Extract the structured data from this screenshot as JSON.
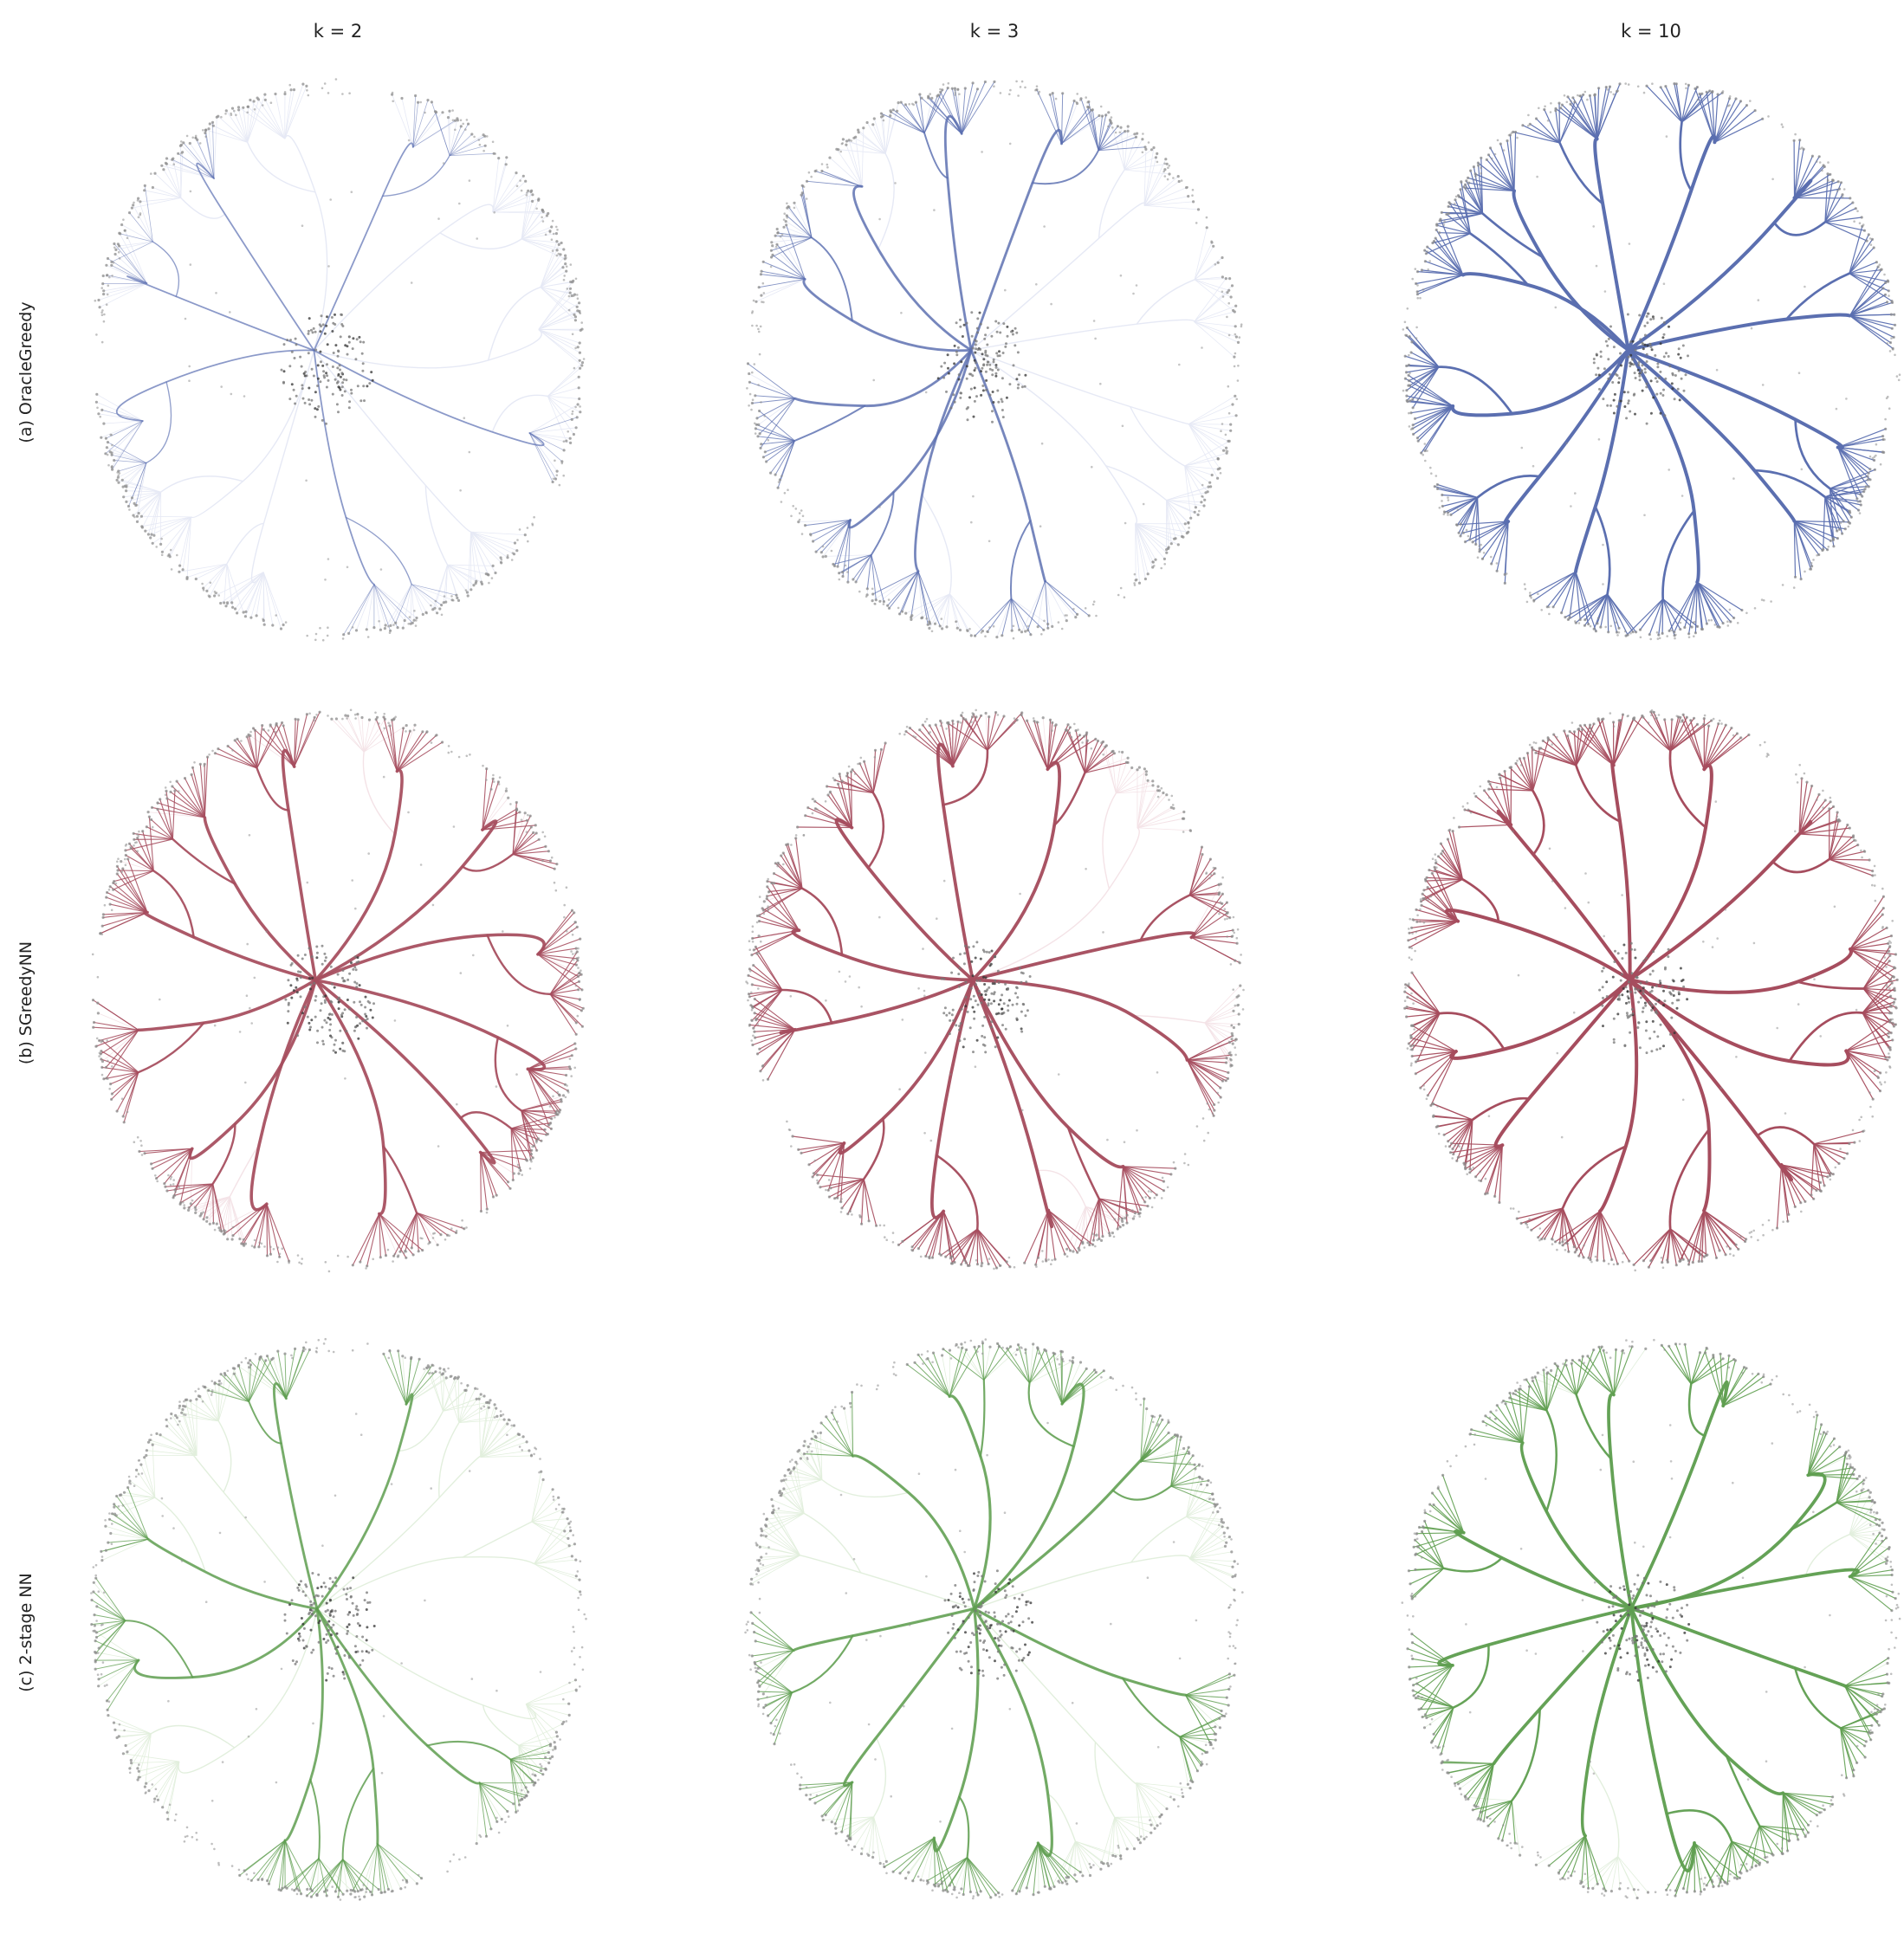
{
  "columns": [
    "k = 2",
    "k = 3",
    "k = 10"
  ],
  "rows": [
    {
      "label": "(a) OracleGreedy",
      "color": "#5b6fb0",
      "faint": "#e6e9f5"
    },
    {
      "label": "(b) SGreedyNN",
      "color": "#a64d5e",
      "faint": "#f4e3e7"
    },
    {
      "label": "(c) 2-stage NN",
      "color": "#5f9e50",
      "faint": "#e2efdd"
    }
  ],
  "panels": [
    {
      "row": 0,
      "col": 0,
      "k": 2,
      "strength": 0.22
    },
    {
      "row": 0,
      "col": 1,
      "k": 3,
      "strength": 0.6
    },
    {
      "row": 0,
      "col": 2,
      "k": 10,
      "strength": 1.0
    },
    {
      "row": 1,
      "col": 0,
      "k": 2,
      "strength": 0.85
    },
    {
      "row": 1,
      "col": 1,
      "k": 3,
      "strength": 0.92
    },
    {
      "row": 1,
      "col": 2,
      "k": 10,
      "strength": 1.0
    },
    {
      "row": 2,
      "col": 0,
      "k": 2,
      "strength": 0.62
    },
    {
      "row": 2,
      "col": 1,
      "k": 3,
      "strength": 0.72
    },
    {
      "row": 2,
      "col": 2,
      "k": 10,
      "strength": 0.9
    }
  ]
}
